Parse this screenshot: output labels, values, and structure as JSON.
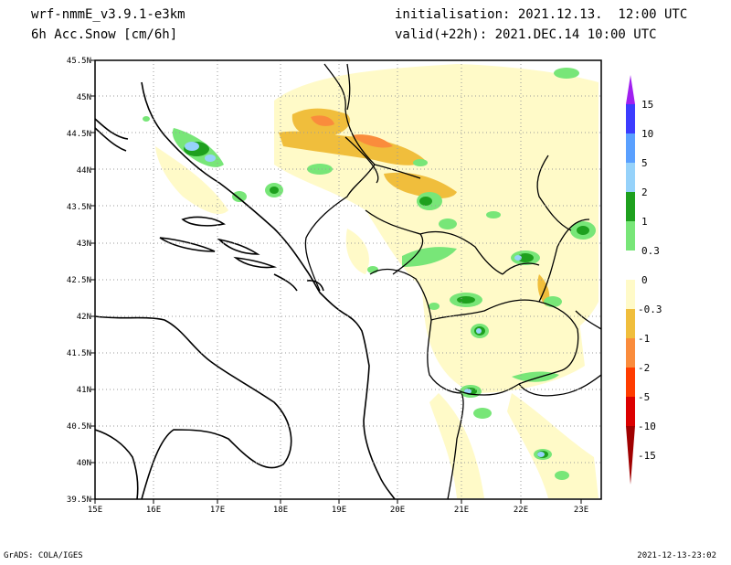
{
  "header": {
    "model": "wrf-nmmE_v3.9.1-e3km",
    "field": "6h Acc.Snow [cm/6h]",
    "init": "initialisation: 2021.12.13.  12:00 UTC",
    "valid": "valid(+22h): 2021.DEC.14 10:00 UTC"
  },
  "footer": {
    "left": "GrADS: COLA/IGES",
    "right": "2021-12-13-23:02"
  },
  "map": {
    "lat_labels": [
      "45.5N",
      "45N",
      "44.5N",
      "44N",
      "43.5N",
      "43N",
      "42.5N",
      "42N",
      "41.5N",
      "41N",
      "40.5N",
      "40N",
      "39.5N"
    ],
    "lon_labels": [
      "15E",
      "16E",
      "17E",
      "18E",
      "19E",
      "20E",
      "21E",
      "22E",
      "23E"
    ]
  },
  "colorbar": {
    "labels": [
      "15",
      "10",
      "5",
      "2",
      "1",
      "0.3",
      "0",
      "-0.3",
      "-1",
      "-2",
      "-5",
      "-10",
      "-15"
    ],
    "colors": [
      "#a020f0",
      "#3c3cff",
      "#5aa0ff",
      "#96d2fa",
      "#1ea01e",
      "#78e678",
      "#ffffff",
      "#fffac8",
      "#f0be3c",
      "#fa8c3c",
      "#ff3c00",
      "#dc0000",
      "#a00000"
    ]
  }
}
